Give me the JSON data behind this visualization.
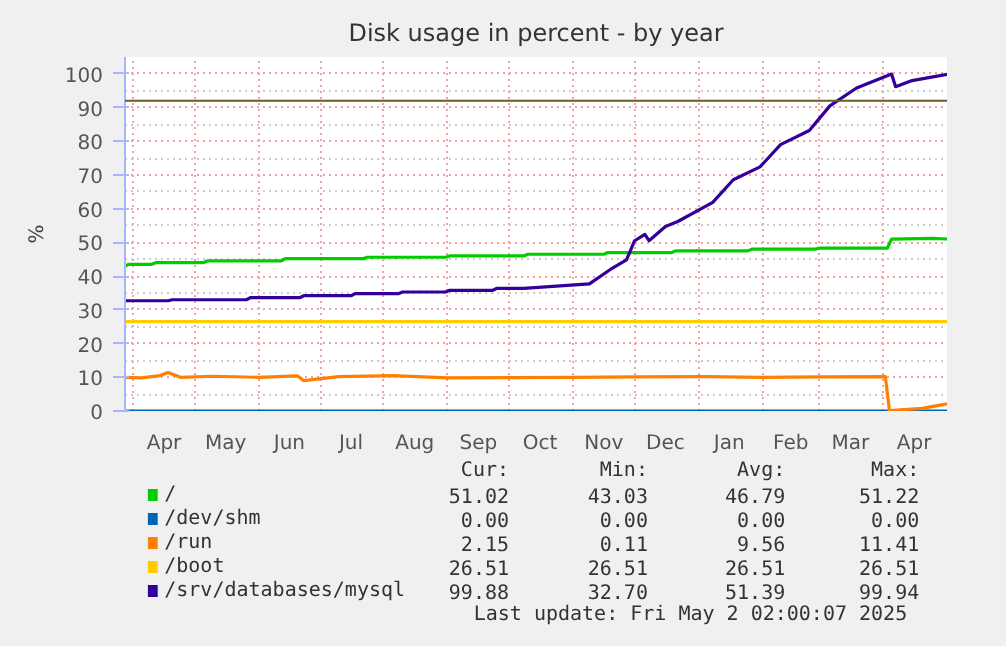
{
  "chart_data": {
    "type": "line",
    "title": "Disk usage in percent - by year",
    "ylabel": "%",
    "xlim": [
      "2024-03-28",
      "2025-05-02"
    ],
    "ylim": [
      0,
      105
    ],
    "yticks": [
      0,
      10,
      20,
      30,
      40,
      50,
      60,
      70,
      80,
      90,
      100
    ],
    "xticks": [
      {
        "value": "2024-04-01",
        "label": null
      },
      {
        "value": "2024-04-16",
        "label": "Apr"
      },
      {
        "value": "2024-05-01",
        "label": null
      },
      {
        "value": "2024-05-16",
        "label": "May"
      },
      {
        "value": "2024-06-01",
        "label": null
      },
      {
        "value": "2024-06-16",
        "label": "Jun"
      },
      {
        "value": "2024-07-01",
        "label": null
      },
      {
        "value": "2024-07-16",
        "label": "Jul"
      },
      {
        "value": "2024-08-01",
        "label": null
      },
      {
        "value": "2024-08-16",
        "label": "Aug"
      },
      {
        "value": "2024-09-01",
        "label": null
      },
      {
        "value": "2024-09-16",
        "label": "Sep"
      },
      {
        "value": "2024-10-01",
        "label": null
      },
      {
        "value": "2024-10-16",
        "label": "Oct"
      },
      {
        "value": "2024-11-01",
        "label": null
      },
      {
        "value": "2024-11-16",
        "label": "Nov"
      },
      {
        "value": "2024-12-01",
        "label": null
      },
      {
        "value": "2024-12-16",
        "label": "Dec"
      },
      {
        "value": "2025-01-01",
        "label": null
      },
      {
        "value": "2025-01-16",
        "label": "Jan"
      },
      {
        "value": "2025-02-01",
        "label": null
      },
      {
        "value": "2025-02-15",
        "label": "Feb"
      },
      {
        "value": "2025-03-01",
        "label": null
      },
      {
        "value": "2025-03-16",
        "label": "Mar"
      },
      {
        "value": "2025-04-01",
        "label": null
      },
      {
        "value": "2025-04-16",
        "label": "Apr"
      }
    ],
    "grid": true,
    "legend": "bottom",
    "ref_lines": [
      {
        "axis": "y",
        "value": 92,
        "color": "#6b5a2a"
      }
    ],
    "series": [
      {
        "name": "/",
        "color": "#00cc00",
        "x": [
          "2024-03-28",
          "2024-03-30",
          "2024-04-10",
          "2024-04-12",
          "2024-05-05",
          "2024-05-07",
          "2024-06-12",
          "2024-06-14",
          "2024-07-22",
          "2024-07-24",
          "2024-08-31",
          "2024-09-02",
          "2024-10-08",
          "2024-10-10",
          "2024-11-16",
          "2024-11-18",
          "2024-12-19",
          "2024-12-21",
          "2025-01-25",
          "2025-01-27",
          "2025-02-27",
          "2025-03-01",
          "2025-04-03",
          "2025-04-05",
          "2025-04-25",
          "2025-05-02"
        ],
        "values": [
          43.03,
          43.5,
          43.5,
          44.0,
          44.0,
          44.5,
          44.5,
          45.2,
          45.2,
          45.6,
          45.6,
          46.0,
          46.0,
          46.5,
          46.5,
          47.0,
          47.0,
          47.5,
          47.5,
          48.0,
          48.0,
          48.3,
          48.3,
          51.0,
          51.22,
          51.02
        ]
      },
      {
        "name": "/dev/shm",
        "color": "#0066b3",
        "x": [
          "2024-03-28",
          "2025-05-02"
        ],
        "values": [
          0,
          0
        ]
      },
      {
        "name": "/run",
        "color": "#ff8000",
        "x": [
          "2024-03-28",
          "2024-04-05",
          "2024-04-14",
          "2024-04-18",
          "2024-04-24",
          "2024-05-10",
          "2024-06-01",
          "2024-06-20",
          "2024-06-23",
          "2024-07-10",
          "2024-08-05",
          "2024-09-01",
          "2024-10-01",
          "2024-11-01",
          "2024-12-01",
          "2025-01-05",
          "2025-02-01",
          "2025-03-01",
          "2025-04-02",
          "2025-04-04",
          "2025-04-20",
          "2025-05-02"
        ],
        "values": [
          10.0,
          9.8,
          10.5,
          11.41,
          10.0,
          10.3,
          10.0,
          10.4,
          9.0,
          10.2,
          10.5,
          9.8,
          9.9,
          10.0,
          10.1,
          10.2,
          10.0,
          10.1,
          10.2,
          0.11,
          0.8,
          2.15
        ]
      },
      {
        "name": "/boot",
        "color": "#ffcc00",
        "x": [
          "2024-03-28",
          "2025-05-02"
        ],
        "values": [
          26.51,
          26.51
        ]
      },
      {
        "name": "/srv/databases/mysql",
        "color": "#330099",
        "x": [
          "2024-03-28",
          "2024-04-18",
          "2024-04-20",
          "2024-05-26",
          "2024-05-28",
          "2024-06-21",
          "2024-06-23",
          "2024-07-16",
          "2024-07-18",
          "2024-08-08",
          "2024-08-10",
          "2024-08-31",
          "2024-09-02",
          "2024-09-23",
          "2024-09-25",
          "2024-10-08",
          "2024-11-09",
          "2024-11-19",
          "2024-11-27",
          "2024-12-01",
          "2024-12-06",
          "2024-12-08",
          "2024-12-16",
          "2024-12-22",
          "2025-01-08",
          "2025-01-18",
          "2025-01-31",
          "2025-02-10",
          "2025-02-24",
          "2025-03-06",
          "2025-03-19",
          "2025-04-05",
          "2025-04-07",
          "2025-04-15",
          "2025-05-02"
        ],
        "values": [
          32.7,
          32.7,
          33.0,
          33.0,
          33.6,
          33.6,
          34.2,
          34.2,
          34.8,
          34.8,
          35.3,
          35.3,
          35.8,
          35.8,
          36.4,
          36.4,
          37.7,
          41.9,
          44.8,
          50.5,
          52.4,
          50.5,
          54.7,
          56.2,
          61.9,
          68.6,
          72.4,
          79.0,
          83.2,
          90.5,
          95.8,
          99.94,
          96.2,
          98.0,
          99.88
        ]
      }
    ],
    "annotations": [
      "Cur:",
      "Min:",
      "Avg:",
      "Max:",
      "51.02",
      "43.03",
      "46.79",
      "51.22",
      "0.00",
      "0.00",
      "0.00",
      "0.00",
      "2.15",
      "0.11",
      "9.56",
      "11.41",
      "26.51",
      "26.51",
      "26.51",
      "26.51",
      "99.88",
      "32.70",
      "51.39",
      "99.94",
      "Last update: Fri May  2 02:00:07 2025"
    ]
  }
}
